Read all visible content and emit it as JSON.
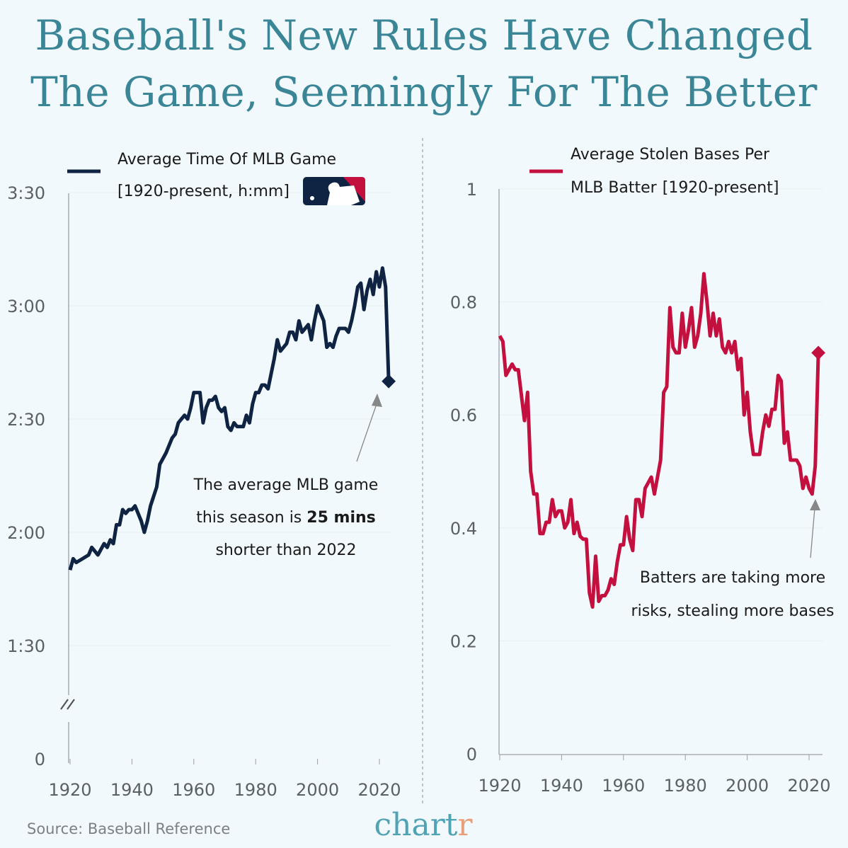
{
  "title_lines": [
    "Baseball's New Rules Have Changed",
    "The Game, Seemingly For The Better"
  ],
  "source": "Source: Baseball Reference",
  "brand": {
    "main": "chart",
    "last": "r"
  },
  "colors": {
    "title": "#3a8696",
    "time_series": "#0f2342",
    "steals_series": "#c3103e",
    "background": "#f2f9fc",
    "brand_main": "#4fa3b5",
    "brand_last": "#e8a07a"
  },
  "logo": "MLB logo",
  "chart_data": [
    {
      "type": "line",
      "legend_title": "Average Time Of MLB Game",
      "legend_subtitle": "[1920-present, h:mm]",
      "y_ticks": [
        "0",
        "1:30",
        "2:00",
        "2:30",
        "3:00",
        "3:30"
      ],
      "y_tick_minutes": [
        0,
        90,
        120,
        150,
        180,
        210
      ],
      "y_axis_break": true,
      "x_ticks": [
        "1920",
        "1940",
        "1960",
        "1980",
        "2000",
        "2020"
      ],
      "ylim_minutes": [
        0,
        210
      ],
      "grid": true,
      "annotation": {
        "lines": [
          "The average MLB game",
          "this season is ",
          "25 mins",
          "shorter than 2022"
        ],
        "target_year": 2023
      },
      "series": [
        {
          "unit": "minutes",
          "x": [
            1920,
            1921,
            1922,
            1924,
            1926,
            1927,
            1929,
            1931,
            1932,
            1933,
            1934,
            1935,
            1936,
            1937,
            1938,
            1939,
            1940,
            1941,
            1943,
            1944,
            1945,
            1946,
            1948,
            1949,
            1951,
            1952,
            1953,
            1954,
            1955,
            1957,
            1958,
            1959,
            1960,
            1961,
            1962,
            1963,
            1964,
            1965,
            1966,
            1967,
            1968,
            1969,
            1970,
            1971,
            1972,
            1973,
            1974,
            1975,
            1976,
            1977,
            1978,
            1979,
            1980,
            1981,
            1982,
            1983,
            1984,
            1986,
            1987,
            1988,
            1989,
            1990,
            1991,
            1992,
            1993,
            1994,
            1995,
            1996,
            1997,
            1998,
            1999,
            2000,
            2001,
            2002,
            2003,
            2004,
            2005,
            2006,
            2007,
            2008,
            2009,
            2010,
            2011,
            2012,
            2013,
            2014,
            2015,
            2016,
            2017,
            2018,
            2019,
            2020,
            2021,
            2022,
            2023
          ],
          "y": [
            110,
            113,
            112,
            113,
            114,
            116,
            114,
            117,
            116,
            118,
            117,
            122,
            122,
            126,
            125,
            126,
            126,
            127,
            123,
            120,
            123,
            127,
            132,
            138,
            141,
            143,
            145,
            146,
            149,
            151,
            150,
            153,
            157,
            157,
            157,
            149,
            153,
            155,
            155,
            156,
            153,
            152,
            153,
            148,
            147,
            149,
            148,
            148,
            148,
            151,
            149,
            154,
            157,
            157,
            159,
            159,
            158,
            166,
            171,
            168,
            169,
            170,
            173,
            173,
            171,
            176,
            173,
            174,
            175,
            171,
            176,
            180,
            178,
            176,
            169,
            170,
            169,
            172,
            174,
            174,
            174,
            173,
            176,
            180,
            185,
            186,
            179,
            184,
            187,
            183,
            189,
            185,
            190,
            185,
            160
          ],
          "highlight_last": true
        }
      ]
    },
    {
      "type": "line",
      "legend_title": "Average Stolen Bases Per",
      "legend_title2": "MLB Batter",
      "legend_subtitle": "[1920-present]",
      "y_ticks": [
        "0",
        "0.2",
        "0.4",
        "0.6",
        "0.8",
        "1"
      ],
      "x_ticks": [
        "1920",
        "1940",
        "1960",
        "1980",
        "2000",
        "2020"
      ],
      "ylim": [
        0,
        1
      ],
      "grid": true,
      "annotation": {
        "lines": [
          "Batters are taking more",
          "risks, stealing more bases"
        ],
        "target_year": 2021
      },
      "series": [
        {
          "x": [
            1920,
            1921,
            1922,
            1924,
            1925,
            1926,
            1928,
            1929,
            1930,
            1931,
            1932,
            1933,
            1934,
            1935,
            1936,
            1937,
            1938,
            1939,
            1940,
            1941,
            1942,
            1943,
            1944,
            1945,
            1946,
            1947,
            1948,
            1949,
            1950,
            1951,
            1952,
            1953,
            1954,
            1955,
            1956,
            1957,
            1958,
            1959,
            1960,
            1961,
            1962,
            1963,
            1964,
            1965,
            1966,
            1967,
            1968,
            1969,
            1970,
            1971,
            1972,
            1973,
            1974,
            1975,
            1976,
            1977,
            1978,
            1979,
            1980,
            1981,
            1982,
            1983,
            1984,
            1985,
            1986,
            1987,
            1988,
            1989,
            1990,
            1991,
            1992,
            1993,
            1994,
            1995,
            1996,
            1997,
            1998,
            1999,
            2000,
            2001,
            2002,
            2003,
            2004,
            2005,
            2006,
            2007,
            2008,
            2009,
            2010,
            2011,
            2012,
            2013,
            2014,
            2015,
            2016,
            2017,
            2018,
            2019,
            2020,
            2021,
            2022,
            2023
          ],
          "y": [
            0.74,
            0.73,
            0.67,
            0.69,
            0.68,
            0.68,
            0.59,
            0.64,
            0.5,
            0.46,
            0.46,
            0.39,
            0.39,
            0.41,
            0.41,
            0.45,
            0.42,
            0.43,
            0.43,
            0.4,
            0.41,
            0.45,
            0.39,
            0.41,
            0.385,
            0.38,
            0.38,
            0.285,
            0.26,
            0.35,
            0.27,
            0.28,
            0.28,
            0.29,
            0.31,
            0.3,
            0.34,
            0.37,
            0.37,
            0.42,
            0.38,
            0.36,
            0.45,
            0.45,
            0.42,
            0.47,
            0.48,
            0.49,
            0.46,
            0.49,
            0.52,
            0.64,
            0.65,
            0.79,
            0.72,
            0.71,
            0.71,
            0.78,
            0.72,
            0.75,
            0.79,
            0.72,
            0.74,
            0.78,
            0.85,
            0.8,
            0.74,
            0.78,
            0.74,
            0.77,
            0.72,
            0.71,
            0.73,
            0.71,
            0.73,
            0.68,
            0.7,
            0.6,
            0.64,
            0.57,
            0.53,
            0.53,
            0.53,
            0.57,
            0.6,
            0.58,
            0.61,
            0.61,
            0.67,
            0.66,
            0.55,
            0.57,
            0.52,
            0.52,
            0.52,
            0.51,
            0.47,
            0.49,
            0.47,
            0.46,
            0.51,
            0.71
          ],
          "highlight_last": true
        }
      ]
    }
  ]
}
